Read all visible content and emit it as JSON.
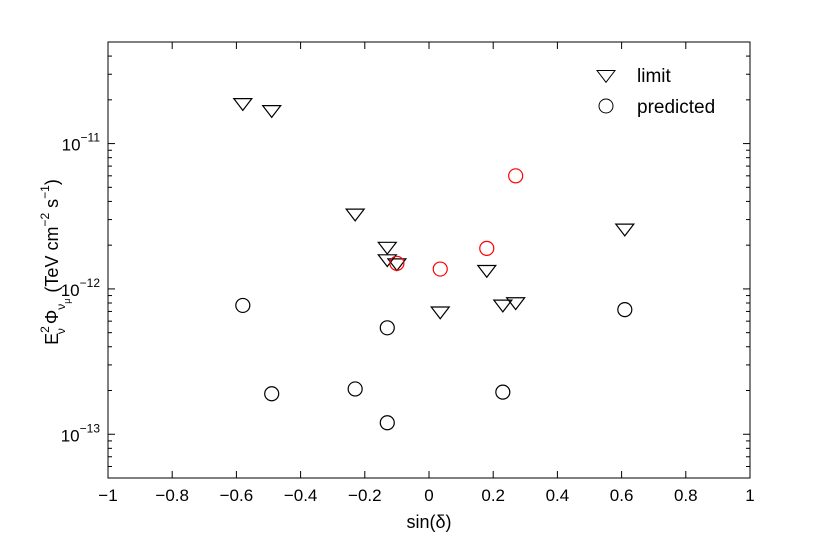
{
  "chart_data": {
    "type": "scatter",
    "xlabel": "sin(δ)",
    "ylabel": {
      "E": "E",
      "E_exp": "2",
      "E_sub": "ν",
      "Phi": "Φ",
      "Phi_sub": "ν",
      "Phi_subsub": "μ",
      "unit_open": "(TeV cm",
      "cm_exp": "−2",
      "s": " s",
      "s_exp": "−1",
      "unit_close": ")"
    },
    "xlim": [
      -1,
      1
    ],
    "ylim": [
      5e-14,
      5e-11
    ],
    "yscale": "log",
    "grid": false,
    "legend_position": "top-right",
    "xticks": [
      -1,
      -0.8,
      -0.6,
      -0.4,
      -0.2,
      0,
      0.2,
      0.4,
      0.6,
      0.8,
      1
    ],
    "xtick_labels": [
      "−1",
      "−0.8",
      "−0.6",
      "−0.4",
      "−0.2",
      "0",
      "0.2",
      "0.4",
      "0.6",
      "0.8",
      "1"
    ],
    "yticks": [
      {
        "value": 1e-13,
        "base": "10",
        "exp": "−13"
      },
      {
        "value": 1e-12,
        "base": "10",
        "exp": "−12"
      },
      {
        "value": 1e-11,
        "base": "10",
        "exp": "−11"
      }
    ],
    "series": [
      {
        "name": "limit",
        "marker": "triangle-down",
        "color": "#000000",
        "points": [
          {
            "x": -0.58,
            "y": 1.9e-11
          },
          {
            "x": -0.49,
            "y": 1.7e-11
          },
          {
            "x": -0.23,
            "y": 3.3e-12
          },
          {
            "x": -0.13,
            "y": 1.95e-12
          },
          {
            "x": -0.13,
            "y": 1.6e-12
          },
          {
            "x": -0.1,
            "y": 1.5e-12
          },
          {
            "x": 0.035,
            "y": 7e-13
          },
          {
            "x": 0.18,
            "y": 1.35e-12
          },
          {
            "x": 0.23,
            "y": 7.8e-13
          },
          {
            "x": 0.27,
            "y": 8.1e-13
          },
          {
            "x": 0.61,
            "y": 2.6e-12
          }
        ]
      },
      {
        "name": "predicted",
        "marker": "circle",
        "color": "#000000",
        "points": [
          {
            "x": -0.58,
            "y": 7.7e-13
          },
          {
            "x": -0.49,
            "y": 1.9e-13
          },
          {
            "x": -0.23,
            "y": 2.05e-13
          },
          {
            "x": -0.13,
            "y": 5.4e-13
          },
          {
            "x": -0.13,
            "y": 1.2e-13
          },
          {
            "x": 0.23,
            "y": 1.95e-13
          },
          {
            "x": 0.61,
            "y": 7.2e-13
          }
        ]
      },
      {
        "marker": "circle",
        "color": "#ff0000",
        "points": [
          {
            "x": -0.1,
            "y": 1.5e-12
          },
          {
            "x": 0.035,
            "y": 1.37e-12
          },
          {
            "x": 0.18,
            "y": 1.9e-12
          },
          {
            "x": 0.27,
            "y": 6e-12
          }
        ]
      }
    ]
  }
}
